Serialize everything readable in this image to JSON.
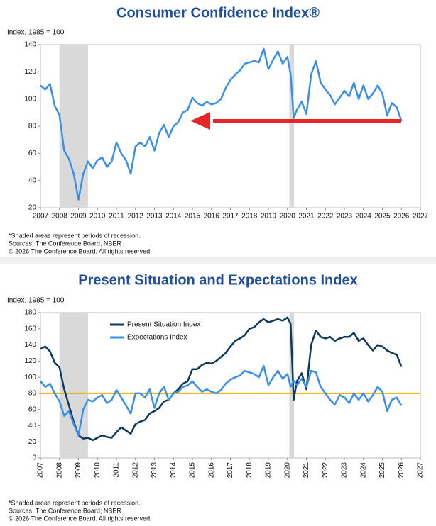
{
  "chart_data": [
    {
      "type": "line",
      "title": "Consumer Confidence Index®",
      "y_label": "Index, 1985 = 100",
      "x": [
        2007.0,
        2007.25,
        2007.5,
        2007.75,
        2008.0,
        2008.25,
        2008.5,
        2008.75,
        2009.0,
        2009.25,
        2009.5,
        2009.75,
        2010.0,
        2010.25,
        2010.5,
        2010.75,
        2011.0,
        2011.25,
        2011.5,
        2011.75,
        2012.0,
        2012.25,
        2012.5,
        2012.75,
        2013.0,
        2013.25,
        2013.5,
        2013.75,
        2014.0,
        2014.25,
        2014.5,
        2014.75,
        2015.0,
        2015.25,
        2015.5,
        2015.75,
        2016.0,
        2016.25,
        2016.5,
        2016.75,
        2017.0,
        2017.25,
        2017.5,
        2017.75,
        2018.0,
        2018.25,
        2018.5,
        2018.75,
        2019.0,
        2019.25,
        2019.5,
        2019.75,
        2020.0,
        2020.17,
        2020.33,
        2020.5,
        2020.75,
        2021.0,
        2021.25,
        2021.5,
        2021.75,
        2022.0,
        2022.25,
        2022.5,
        2022.75,
        2023.0,
        2023.25,
        2023.5,
        2023.75,
        2024.0,
        2024.25,
        2024.5,
        2024.75,
        2025.0,
        2025.25,
        2025.5,
        2025.75,
        2026.0
      ],
      "series": [
        {
          "color": "#3b8fe6",
          "values": [
            110,
            107,
            111,
            95,
            88,
            62,
            56,
            45,
            26,
            45,
            54,
            49,
            55,
            57,
            50,
            54,
            68,
            60,
            55,
            45,
            65,
            68,
            65,
            72,
            62,
            75,
            81,
            72,
            80,
            83,
            90,
            92,
            101,
            97,
            95,
            98,
            96,
            97,
            100,
            108,
            114,
            118,
            121,
            126,
            127,
            128,
            127,
            137,
            122,
            129,
            135,
            126,
            131,
            118,
            86,
            92,
            98,
            89,
            118,
            128,
            112,
            107,
            103,
            96,
            101,
            106,
            102,
            112,
            100,
            110,
            100,
            104,
            110,
            104,
            88,
            97,
            94,
            84
          ]
        }
      ],
      "recessions": [
        [
          2008.0,
          2009.5
        ],
        [
          2020.1,
          2020.35
        ]
      ],
      "xlim": [
        2007,
        2027
      ],
      "xticks": [
        2007,
        2008,
        2009,
        2010,
        2011,
        2012,
        2013,
        2014,
        2015,
        2016,
        2017,
        2018,
        2019,
        2020,
        2021,
        2022,
        2023,
        2024,
        2025,
        2026,
        2027
      ],
      "ylim": [
        20,
        140
      ],
      "yticks": [
        20,
        40,
        60,
        80,
        100,
        120,
        140
      ],
      "grid": false,
      "notes": [
        "*Shaded areas represent periods of recession.",
        "Sources: The Conference Board, NBER",
        "© 2026 The Conference Board. All rights reserved."
      ]
    },
    {
      "type": "line",
      "title": "Present Situation and Expectations Index",
      "y_label": "Index, 1985 = 100",
      "x": [
        2007.0,
        2007.25,
        2007.5,
        2007.75,
        2008.0,
        2008.25,
        2008.5,
        2008.75,
        2009.0,
        2009.25,
        2009.5,
        2009.75,
        2010.0,
        2010.25,
        2010.5,
        2010.75,
        2011.0,
        2011.25,
        2011.5,
        2011.75,
        2012.0,
        2012.25,
        2012.5,
        2012.75,
        2013.0,
        2013.25,
        2013.5,
        2013.75,
        2014.0,
        2014.25,
        2014.5,
        2014.75,
        2015.0,
        2015.25,
        2015.5,
        2015.75,
        2016.0,
        2016.25,
        2016.5,
        2016.75,
        2017.0,
        2017.25,
        2017.5,
        2017.75,
        2018.0,
        2018.25,
        2018.5,
        2018.75,
        2019.0,
        2019.25,
        2019.5,
        2019.75,
        2020.0,
        2020.17,
        2020.33,
        2020.5,
        2020.75,
        2021.0,
        2021.25,
        2021.5,
        2021.75,
        2022.0,
        2022.25,
        2022.5,
        2022.75,
        2023.0,
        2023.25,
        2023.5,
        2023.75,
        2024.0,
        2024.25,
        2024.5,
        2024.75,
        2025.0,
        2025.25,
        2025.5,
        2025.75,
        2026.0
      ],
      "series": [
        {
          "name": "Present Situation Index",
          "color": "#0d3a5c",
          "values": [
            135,
            138,
            132,
            118,
            112,
            85,
            65,
            45,
            28,
            24,
            25,
            22,
            25,
            28,
            26,
            25,
            32,
            38,
            34,
            30,
            42,
            45,
            47,
            55,
            58,
            62,
            70,
            72,
            80,
            85,
            92,
            95,
            110,
            110,
            115,
            118,
            117,
            120,
            125,
            130,
            138,
            145,
            148,
            152,
            160,
            162,
            168,
            172,
            168,
            170,
            172,
            170,
            174,
            166,
            72,
            95,
            105,
            85,
            140,
            158,
            150,
            148,
            150,
            145,
            148,
            150,
            150,
            155,
            145,
            148,
            140,
            133,
            140,
            138,
            133,
            130,
            128,
            113
          ]
        },
        {
          "name": "Expectations Index",
          "color": "#3b8fe6",
          "values": [
            95,
            88,
            92,
            80,
            70,
            52,
            58,
            42,
            28,
            60,
            72,
            70,
            75,
            78,
            68,
            72,
            84,
            75,
            65,
            55,
            80,
            80,
            75,
            85,
            62,
            80,
            88,
            72,
            80,
            82,
            88,
            90,
            95,
            88,
            82,
            85,
            82,
            80,
            84,
            92,
            97,
            100,
            102,
            108,
            106,
            104,
            100,
            114,
            90,
            100,
            108,
            98,
            104,
            88,
            96,
            90,
            98,
            88,
            108,
            106,
            88,
            80,
            72,
            66,
            78,
            75,
            68,
            80,
            72,
            80,
            70,
            78,
            88,
            82,
            58,
            72,
            75,
            65
          ]
        }
      ],
      "recessions": [
        [
          2008.0,
          2009.5
        ],
        [
          2020.1,
          2020.35
        ]
      ],
      "hline": {
        "value": 80,
        "color": "#f2a900"
      },
      "legend": "upper left",
      "xlim": [
        2007,
        2027
      ],
      "xticks": [
        2007,
        2008,
        2009,
        2010,
        2011,
        2012,
        2013,
        2014,
        2015,
        2016,
        2017,
        2018,
        2019,
        2020,
        2021,
        2022,
        2023,
        2024,
        2025,
        2026,
        2027
      ],
      "xtick_rotation": -90,
      "ylim": [
        0,
        180
      ],
      "yticks": [
        0,
        20,
        40,
        60,
        80,
        100,
        120,
        140,
        160,
        180
      ],
      "grid": false,
      "notes": [
        "*Shaded areas represent periods of recession.",
        "Sources: The Conference Board; NBER",
        "© 2026 The Conference Board. All rights reserved."
      ]
    }
  ]
}
